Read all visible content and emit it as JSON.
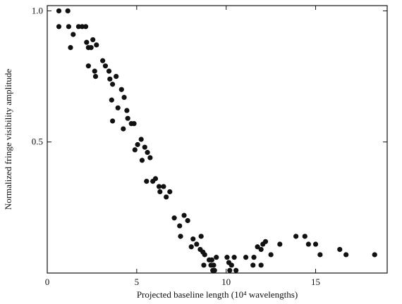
{
  "chart_data": {
    "type": "scatter",
    "title": "",
    "xlabel": "Projected baseline length (10⁴ wavelengths)",
    "ylabel": "Normalized fringe visibility amplitude",
    "xlim": [
      0,
      19
    ],
    "ylim": [
      0,
      1.02
    ],
    "xticks": [
      0,
      5,
      10,
      15
    ],
    "xtick_labels": [
      "0",
      "5",
      "10",
      "15"
    ],
    "yticks": [
      0.5,
      1.0
    ],
    "ytick_labels": [
      "0.5",
      "1.0"
    ],
    "grid": false,
    "legend": "none",
    "marker_color": "#111111",
    "series": [
      {
        "points": [
          [
            0.65,
            1.0
          ],
          [
            1.15,
            1.0
          ],
          [
            0.65,
            0.94
          ],
          [
            1.2,
            0.94
          ],
          [
            1.45,
            0.91
          ],
          [
            1.3,
            0.86
          ],
          [
            1.75,
            0.94
          ],
          [
            1.95,
            0.94
          ],
          [
            2.15,
            0.94
          ],
          [
            2.2,
            0.88
          ],
          [
            2.3,
            0.86
          ],
          [
            2.45,
            0.86
          ],
          [
            2.3,
            0.79
          ],
          [
            2.55,
            0.89
          ],
          [
            2.75,
            0.87
          ],
          [
            2.65,
            0.77
          ],
          [
            2.7,
            0.75
          ],
          [
            3.1,
            0.81
          ],
          [
            3.25,
            0.79
          ],
          [
            3.45,
            0.77
          ],
          [
            3.5,
            0.74
          ],
          [
            3.65,
            0.72
          ],
          [
            3.85,
            0.75
          ],
          [
            3.6,
            0.66
          ],
          [
            3.65,
            0.58
          ],
          [
            4.15,
            0.7
          ],
          [
            4.3,
            0.67
          ],
          [
            3.95,
            0.63
          ],
          [
            4.45,
            0.62
          ],
          [
            4.5,
            0.59
          ],
          [
            4.7,
            0.57
          ],
          [
            4.85,
            0.57
          ],
          [
            4.25,
            0.55
          ],
          [
            4.9,
            0.47
          ],
          [
            5.05,
            0.49
          ],
          [
            5.25,
            0.51
          ],
          [
            5.45,
            0.48
          ],
          [
            5.3,
            0.43
          ],
          [
            5.6,
            0.46
          ],
          [
            5.75,
            0.44
          ],
          [
            5.55,
            0.35
          ],
          [
            5.9,
            0.35
          ],
          [
            6.05,
            0.36
          ],
          [
            6.25,
            0.33
          ],
          [
            6.3,
            0.31
          ],
          [
            6.5,
            0.33
          ],
          [
            6.65,
            0.29
          ],
          [
            6.85,
            0.31
          ],
          [
            7.1,
            0.21
          ],
          [
            7.4,
            0.18
          ],
          [
            7.45,
            0.14
          ],
          [
            7.65,
            0.22
          ],
          [
            7.85,
            0.2
          ],
          [
            8.15,
            0.13
          ],
          [
            8.05,
            0.1
          ],
          [
            8.35,
            0.11
          ],
          [
            8.55,
            0.09
          ],
          [
            8.6,
            0.14
          ],
          [
            8.7,
            0.08
          ],
          [
            8.8,
            0.07
          ],
          [
            8.75,
            0.03
          ],
          [
            9.05,
            0.05
          ],
          [
            9.15,
            0.03
          ],
          [
            9.2,
            0.05
          ],
          [
            9.3,
            0.03
          ],
          [
            9.45,
            0.06
          ],
          [
            9.25,
            0.01
          ],
          [
            9.35,
            0.01
          ],
          [
            10.05,
            0.06
          ],
          [
            10.15,
            0.04
          ],
          [
            10.2,
            0.01
          ],
          [
            10.3,
            0.03
          ],
          [
            10.45,
            0.06
          ],
          [
            10.55,
            0.01
          ],
          [
            11.1,
            0.06
          ],
          [
            11.5,
            0.03
          ],
          [
            11.55,
            0.06
          ],
          [
            11.75,
            0.1
          ],
          [
            11.95,
            0.03
          ],
          [
            11.95,
            0.09
          ],
          [
            12.05,
            0.11
          ],
          [
            12.2,
            0.12
          ],
          [
            12.5,
            0.07
          ],
          [
            13.0,
            0.11
          ],
          [
            13.9,
            0.14
          ],
          [
            14.4,
            0.14
          ],
          [
            14.6,
            0.11
          ],
          [
            15.0,
            0.11
          ],
          [
            15.25,
            0.07
          ],
          [
            16.35,
            0.09
          ],
          [
            16.7,
            0.07
          ],
          [
            18.3,
            0.07
          ]
        ]
      }
    ]
  }
}
